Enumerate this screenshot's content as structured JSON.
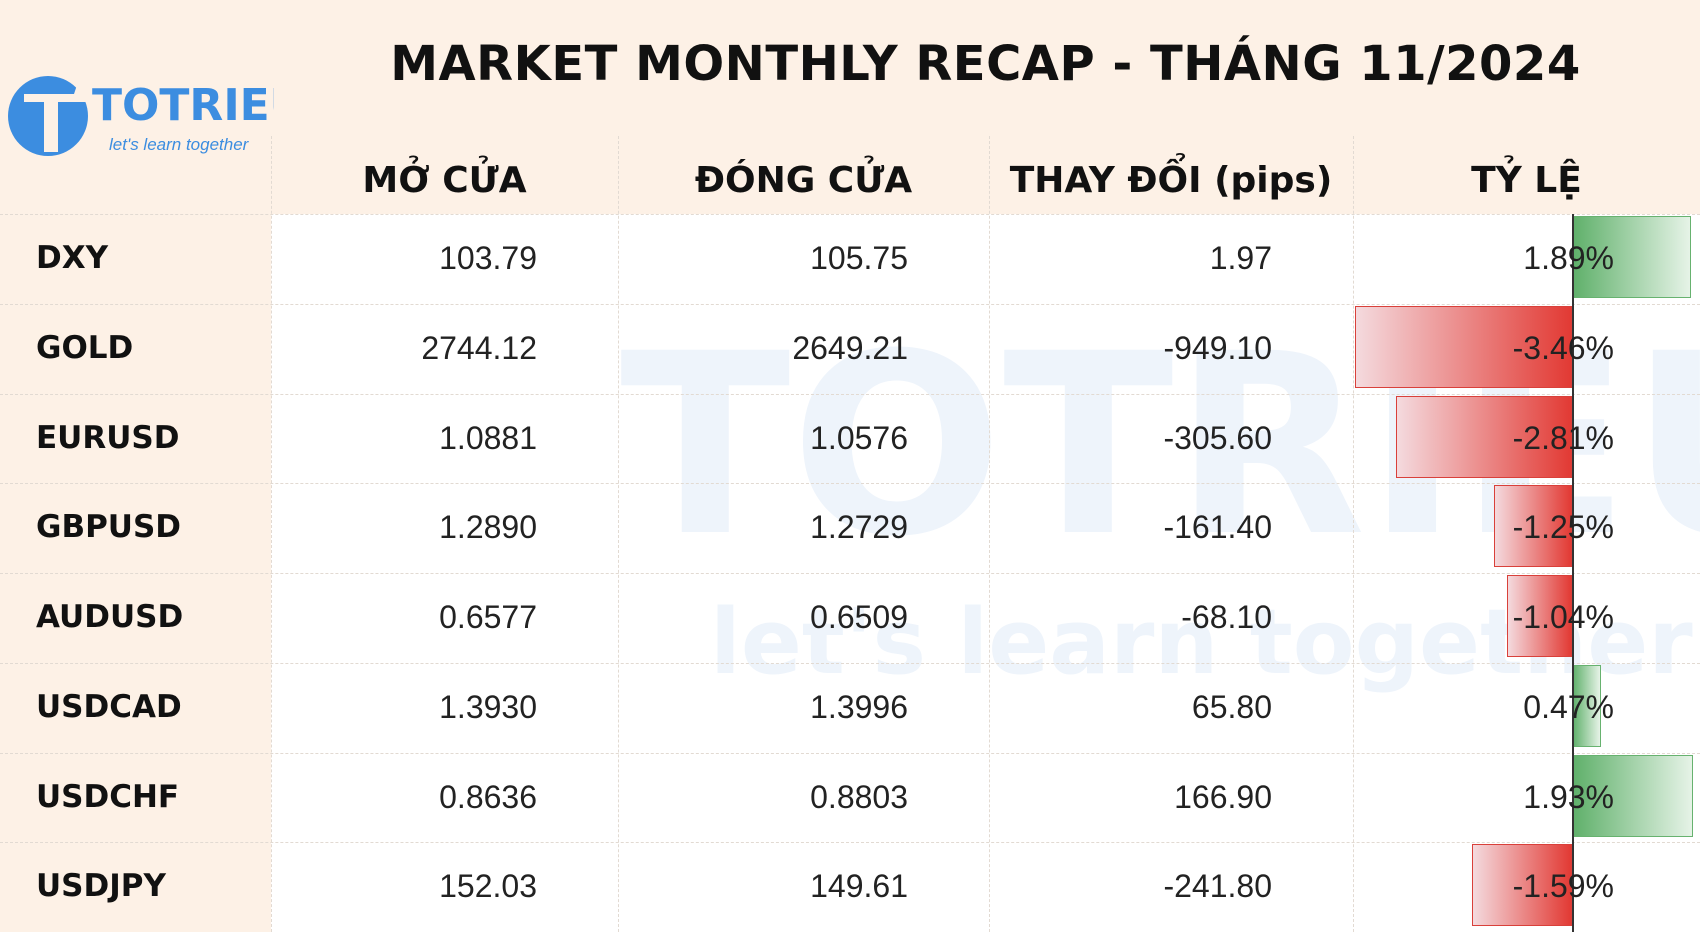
{
  "logo": {
    "name": "TOTRIEU",
    "tagline": "let's learn together"
  },
  "title": "MARKET MONTHLY RECAP - THÁNG 11/2024",
  "table": {
    "columns": [
      "MỞ CỬA",
      "ĐÓNG CỬA",
      "THAY ĐỔI (pips)",
      "TỶ LỆ"
    ],
    "rows": [
      [
        "DXY",
        "103.79",
        "105.75",
        "1.97",
        "1.89%"
      ],
      [
        "GOLD",
        "2744.12",
        "2649.21",
        "-949.10",
        "-3.46%"
      ],
      [
        "EURUSD",
        "1.0881",
        "1.0576",
        "-305.60",
        "-2.81%"
      ],
      [
        "GBPUSD",
        "1.2890",
        "1.2729",
        "-161.40",
        "-1.25%"
      ],
      [
        "AUDUSD",
        "0.6577",
        "0.6509",
        "-68.10",
        "-1.04%"
      ],
      [
        "USDCAD",
        "1.3930",
        "1.3996",
        "65.80",
        "0.47%"
      ],
      [
        "USDCHF",
        "0.8636",
        "0.8803",
        "166.90",
        "1.93%"
      ],
      [
        "USDJPY",
        "152.03",
        "149.61",
        "-241.80",
        "-1.59%"
      ]
    ]
  }
}
